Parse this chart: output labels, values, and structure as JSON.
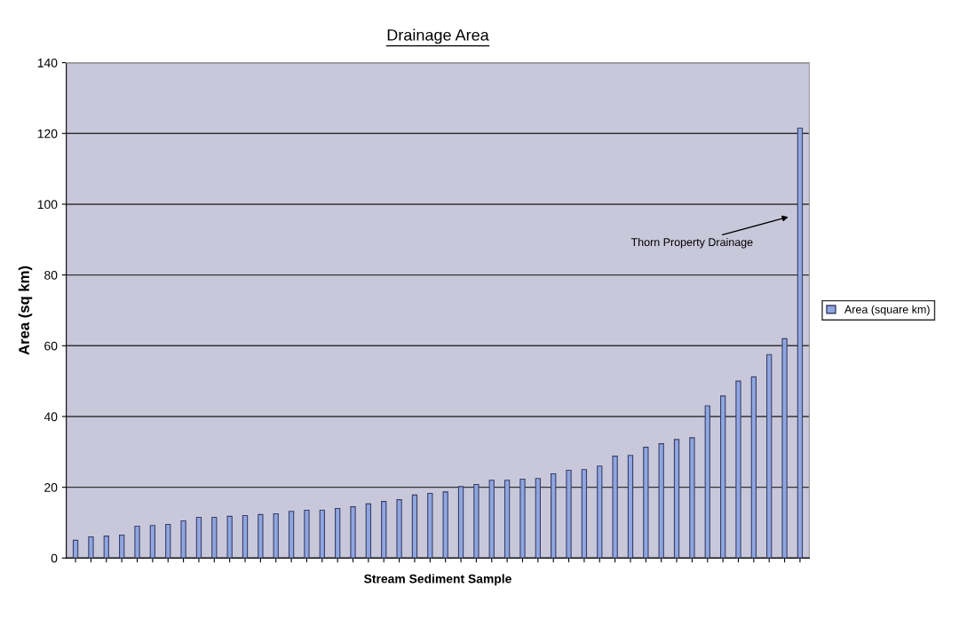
{
  "chart_data": {
    "type": "bar",
    "title": "Drainage Area",
    "xlabel": "Stream Sediment Sample",
    "ylabel": "Area (sq km)",
    "categories": [
      null,
      null,
      null,
      null,
      null,
      null,
      null,
      null,
      null,
      null,
      null,
      null,
      null,
      null,
      null,
      null,
      null,
      null,
      null,
      null,
      null,
      null,
      null,
      null,
      null,
      null,
      null,
      null,
      null,
      null,
      null,
      null,
      null,
      null,
      null,
      null,
      null,
      null,
      null,
      null,
      null,
      null,
      null,
      null,
      null,
      null,
      null,
      null
    ],
    "series": [
      {
        "name": "Area (square km)",
        "color": "#8fa6e0",
        "values": [
          5,
          6,
          6.2,
          6.5,
          9,
          9.2,
          9.5,
          10.5,
          11.5,
          11.5,
          11.8,
          12,
          12.3,
          12.5,
          13.2,
          13.5,
          13.5,
          14,
          14.5,
          15.3,
          16,
          16.5,
          17.8,
          18.3,
          18.7,
          20.2,
          20.8,
          22,
          22,
          22.3,
          22.5,
          23.8,
          24.8,
          25,
          26,
          28.8,
          29,
          31.3,
          32.3,
          33.5,
          34,
          43,
          45.8,
          50,
          51.2,
          57.5,
          62,
          121.5
        ]
      }
    ],
    "annotations": [
      "Thorn Property Drainage"
    ],
    "ylim": [
      0,
      140
    ],
    "yticks": [
      0,
      20,
      40,
      60,
      80,
      100,
      120,
      140
    ],
    "grid": "y",
    "legend": "right"
  }
}
